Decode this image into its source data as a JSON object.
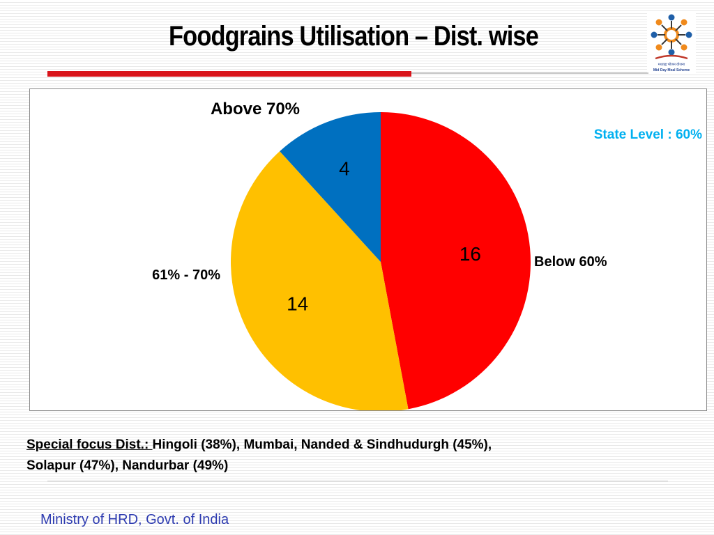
{
  "slide": {
    "title": "Foodgrains Utilisation – Dist. wise",
    "logo_text": "मध्याह्न भोजन योजना Mid Day Meal Scheme",
    "footer": "Ministry of HRD, Govt. of India"
  },
  "chart_data": {
    "type": "pie",
    "categories": [
      "Below 60%",
      "61% - 70%",
      "Above 70%"
    ],
    "values": [
      16,
      14,
      4
    ],
    "colors": [
      "#ff0000",
      "#ffc000",
      "#0070c0"
    ],
    "annotation": "State Level : 60%",
    "annotation_color": "#00b0f0",
    "start_angle_deg": 0,
    "direction": "clockwise"
  },
  "note": {
    "prefix": "Special focus Dist.: ",
    "line1": "Hingoli (38%), Mumbai, Nanded & Sindhudurgh (45%),",
    "line2": "Solapur (47%), Nandurbar (49%)"
  }
}
